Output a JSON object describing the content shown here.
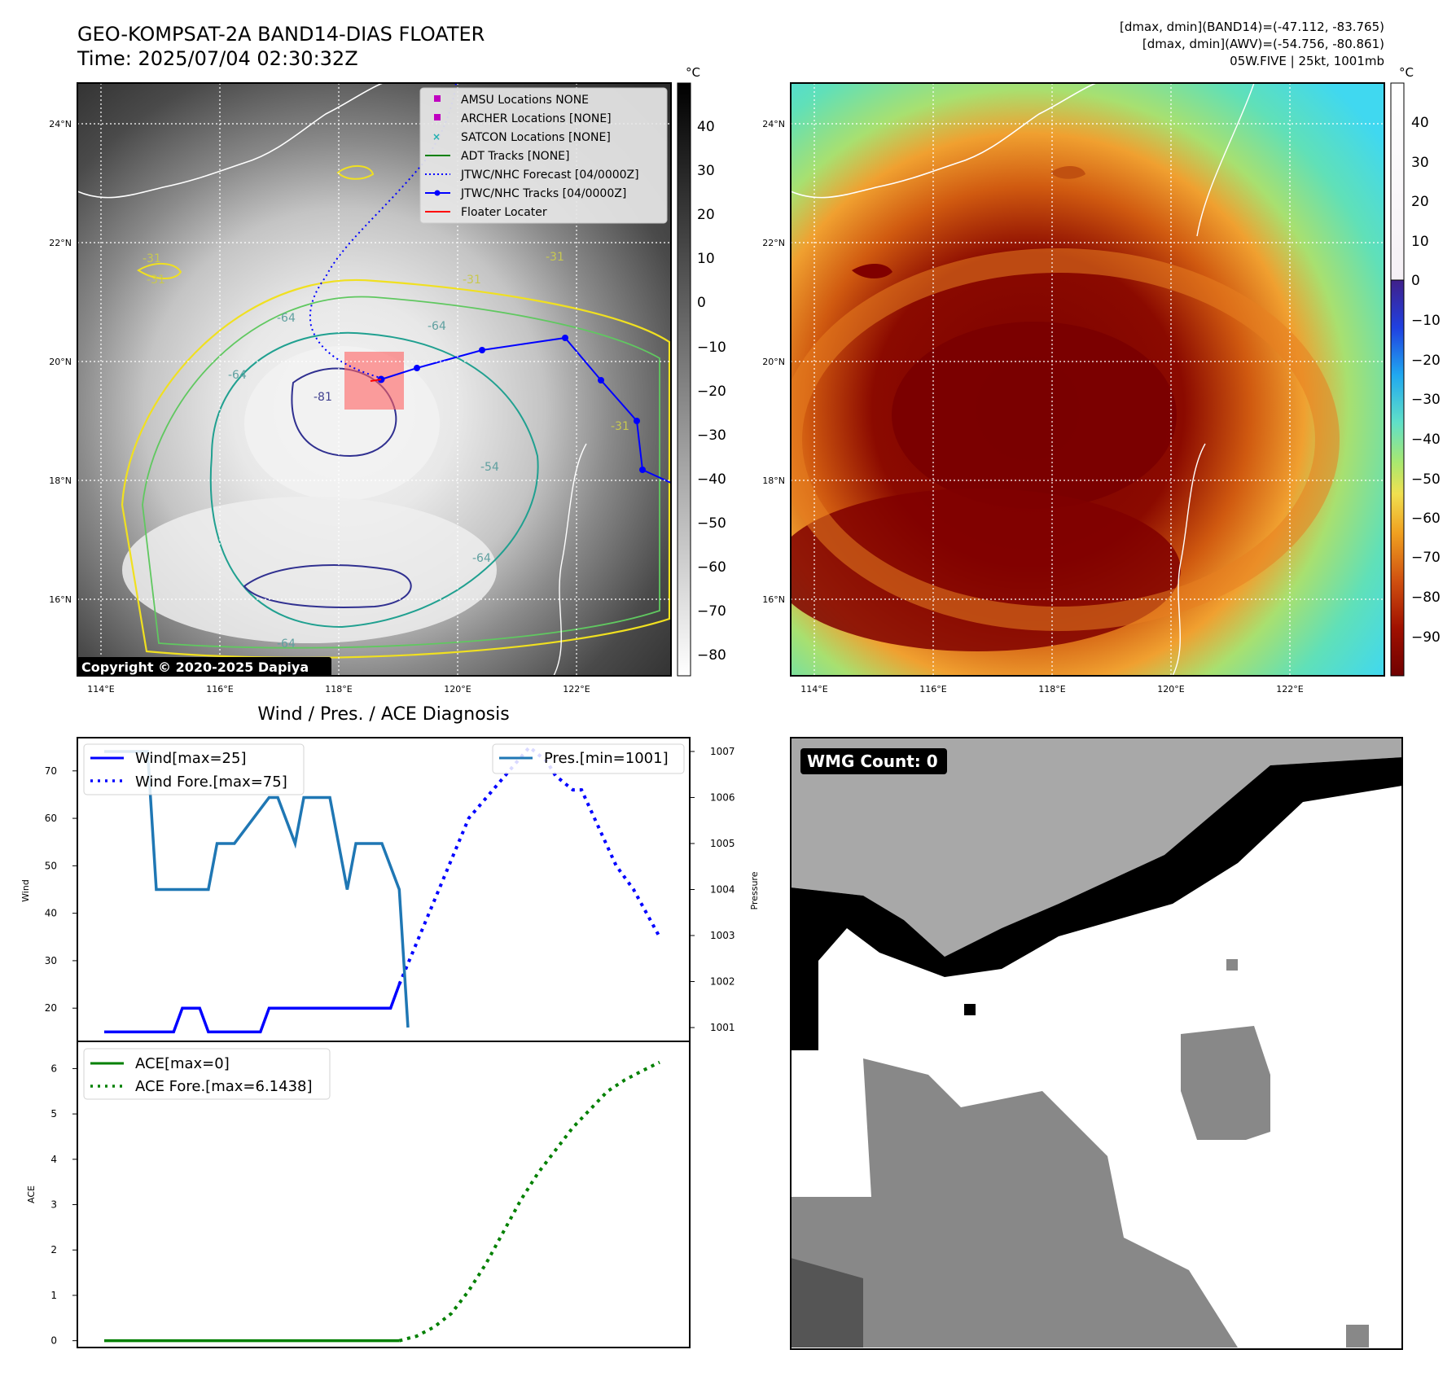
{
  "header": {
    "title": "GEO-KOMPSAT-2A BAND14-DIAS FLOATER",
    "time": "Time: 2025/07/04 02:30:32Z",
    "info_line1": "[dmax, dmin](BAND14)=(-47.112, -83.765)",
    "info_line2": "[dmax, dmin](AWV)=(-54.756, -80.861)",
    "info_line3": "05W.FIVE | 25kt, 1001mb"
  },
  "maps": {
    "lat_labels": [
      "24°N",
      "22°N",
      "20°N",
      "18°N",
      "16°N"
    ],
    "lon_labels": [
      "114°E",
      "116°E",
      "118°E",
      "120°E",
      "122°E"
    ],
    "copyright": "Copyright © 2020-2025 Dapiya",
    "contour_labels": [
      "-31",
      "-31",
      "-31",
      "-31",
      "-64",
      "-64",
      "-64",
      "-81",
      "-54",
      "-64",
      "-64",
      "-31"
    ],
    "colorbar_left": {
      "unit": "°C",
      "ticks": [
        "40",
        "30",
        "20",
        "10",
        "0",
        "−10",
        "−20",
        "−30",
        "−40",
        "−50",
        "−60",
        "−70",
        "−80"
      ]
    },
    "colorbar_right": {
      "unit": "°C",
      "ticks": [
        "40",
        "30",
        "20",
        "10",
        "0",
        "−10",
        "−20",
        "−30",
        "−40",
        "−50",
        "−60",
        "−70",
        "−80",
        "−90"
      ]
    },
    "legend": [
      {
        "label": "AMSU Locations NONE",
        "color": "#c000c0",
        "marker": "square"
      },
      {
        "label": "ARCHER Locations [NONE]",
        "color": "#c000c0",
        "marker": "square"
      },
      {
        "label": "SATCON Locations [NONE]",
        "color": "#20b0b0",
        "marker": "x"
      },
      {
        "label": "ADT Tracks [NONE]",
        "color": "#008000",
        "marker": "line"
      },
      {
        "label": "JTWC/NHC Forecast [04/0000Z]",
        "color": "#0000ff",
        "marker": "dotted"
      },
      {
        "label": "JTWC/NHC Tracks [04/0000Z]",
        "color": "#0000ff",
        "marker": "line-dot"
      },
      {
        "label": "Floater Locater",
        "color": "#ff0000",
        "marker": "line"
      }
    ]
  },
  "diagnosis": {
    "title": "Wind / Pres. / ACE Diagnosis",
    "wmg_count": "WMG Count: 0"
  },
  "chart_data": [
    {
      "type": "line",
      "title": "Wind / Pres. / ACE Diagnosis",
      "ylabel": "Wind",
      "y2label": "Pressure",
      "ylim": [
        13,
        77
      ],
      "y2lim": [
        1000.7,
        1007.3
      ],
      "yticks": [
        "20",
        "30",
        "40",
        "50",
        "60",
        "70"
      ],
      "y2ticks": [
        "1001",
        "1002",
        "1003",
        "1004",
        "1005",
        "1006",
        "1007"
      ],
      "legend": [
        "top-left",
        "top-right"
      ],
      "series": [
        {
          "name": "Wind[max=25]",
          "color": "#0000ff",
          "style": "solid",
          "x": [
            0,
            8,
            9,
            11,
            12,
            18,
            19,
            33,
            34
          ],
          "y": [
            15,
            15,
            20,
            20,
            15,
            15,
            20,
            20,
            25
          ]
        },
        {
          "name": "Wind Fore.[max=75]",
          "color": "#0000ff",
          "style": "dotted",
          "x": [
            34,
            42,
            49,
            51,
            52,
            54,
            55,
            57,
            59,
            61,
            64
          ],
          "y": [
            25,
            60,
            75,
            72,
            69,
            66,
            66,
            58,
            50,
            45,
            35
          ]
        },
        {
          "name": "Pres.[min=1001]",
          "color": "#1f77b4",
          "style": "solid",
          "axis": "right",
          "x": [
            0,
            5,
            6,
            12,
            13,
            15,
            19,
            20,
            22,
            23,
            24,
            26,
            28,
            29,
            30,
            32,
            34,
            35
          ],
          "y": [
            1007,
            1007,
            1004,
            1004,
            1005,
            1005,
            1006,
            1006,
            1005,
            1006,
            1006,
            1006,
            1004,
            1005,
            1005,
            1005,
            1004,
            1001
          ]
        }
      ]
    },
    {
      "type": "line",
      "ylabel": "ACE",
      "ylim": [
        -0.15,
        6.6
      ],
      "yticks": [
        "0",
        "1",
        "2",
        "3",
        "4",
        "5",
        "6"
      ],
      "legend": "top-left",
      "series": [
        {
          "name": "ACE[max=0]",
          "color": "#008000",
          "style": "solid",
          "x": [
            0,
            34
          ],
          "y": [
            0,
            0
          ]
        },
        {
          "name": "ACE Fore.[max=6.1438]",
          "color": "#008000",
          "style": "dotted",
          "x": [
            34,
            36,
            38,
            40,
            42,
            44,
            46,
            48,
            50,
            52,
            54,
            56,
            58,
            60,
            62,
            64
          ],
          "y": [
            0,
            0.1,
            0.3,
            0.6,
            1.1,
            1.7,
            2.4,
            3.1,
            3.7,
            4.2,
            4.7,
            5.1,
            5.5,
            5.75,
            5.95,
            6.14
          ]
        }
      ]
    }
  ]
}
